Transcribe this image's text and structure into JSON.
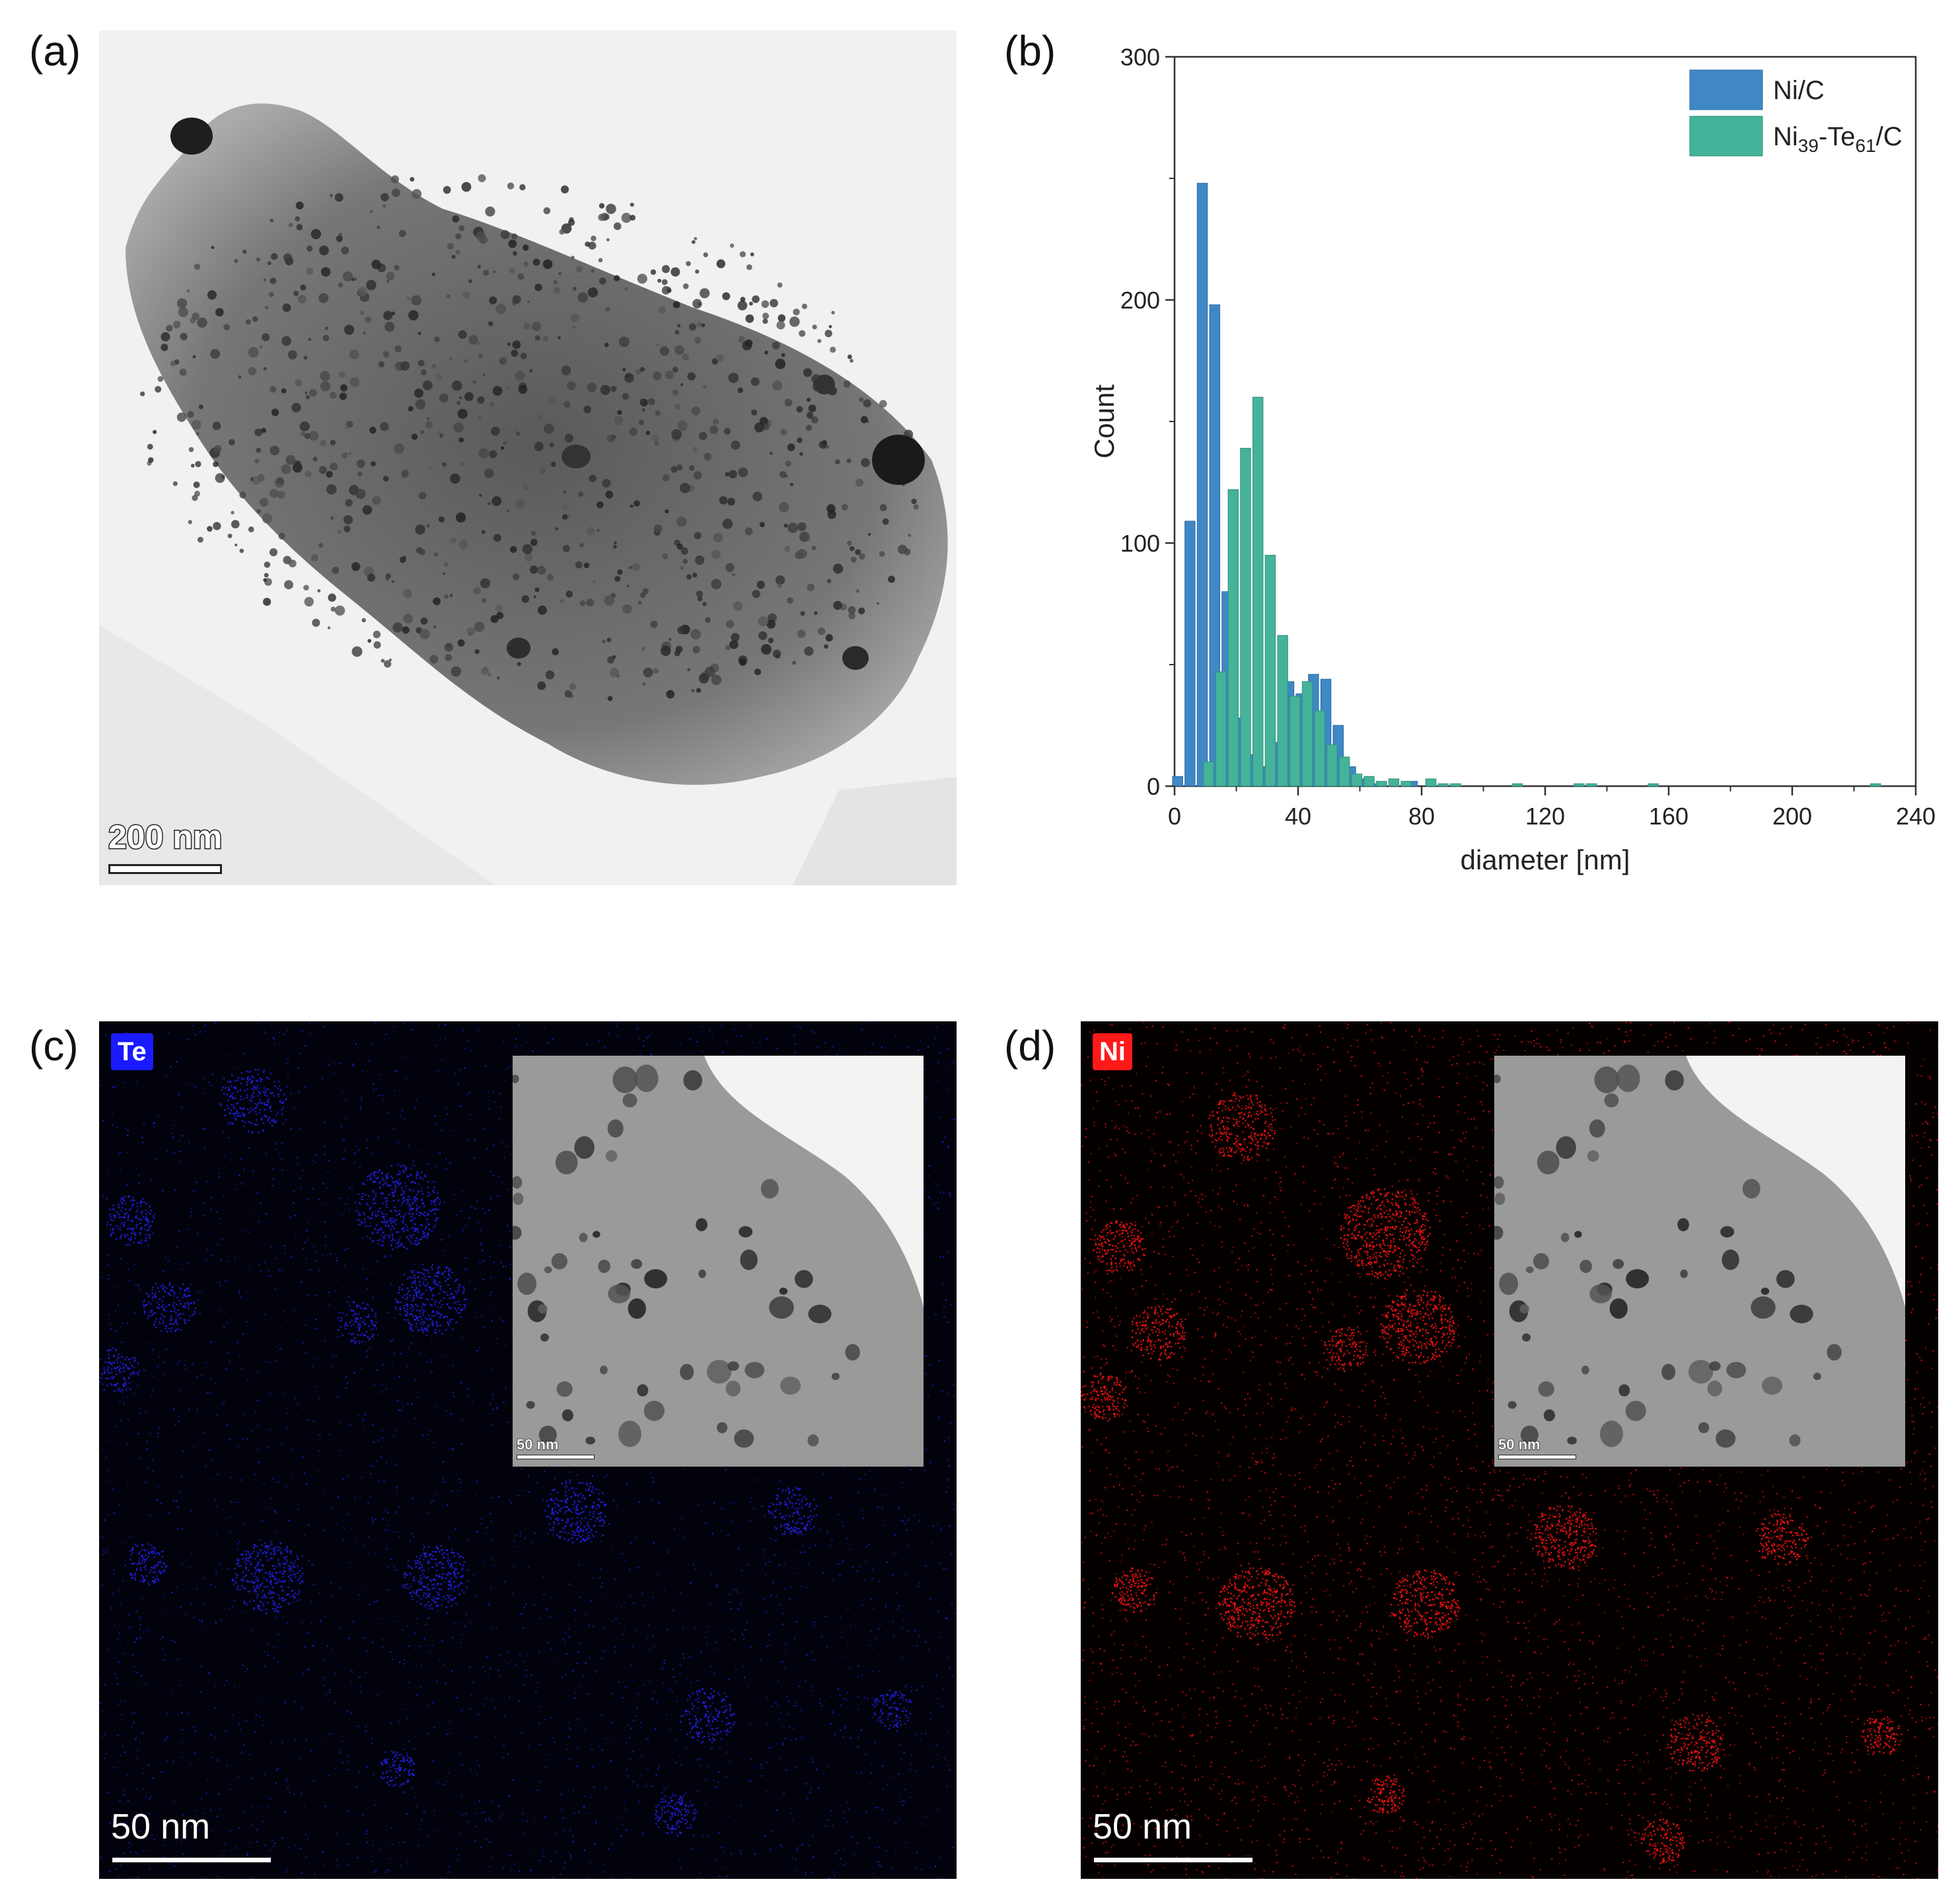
{
  "panels": {
    "a": {
      "letter": "(a)",
      "scale_label": "200 nm"
    },
    "b": {
      "letter": "(b)"
    },
    "c": {
      "letter": "(c)",
      "element": "Te",
      "element_color": "#1a1aff",
      "dot_color": "#2020e0",
      "scale_label": "50 nm",
      "inset_scale_label": "50 nm"
    },
    "d": {
      "letter": "(d)",
      "element": "Ni",
      "element_color": "#ff1a1a",
      "dot_color": "#ee1111",
      "scale_label": "50 nm",
      "inset_scale_label": "50 nm"
    }
  },
  "chart_data": {
    "type": "bar",
    "xlabel": "diameter [nm]",
    "ylabel": "Count",
    "xlim": [
      0,
      240
    ],
    "ylim": [
      0,
      300
    ],
    "xticks": [
      "0",
      "40",
      "80",
      "120",
      "160",
      "200",
      "240"
    ],
    "yticks": [
      "0",
      "100",
      "200",
      "300"
    ],
    "legend_position": "top-right",
    "bin_width": 4,
    "series": [
      {
        "name": "Ni/C",
        "legend_main": "Ni/C",
        "color": "#3f88c5",
        "x": [
          1,
          5,
          9,
          13,
          17,
          21,
          25,
          29,
          33,
          37,
          41,
          45,
          49,
          53,
          57,
          61,
          65,
          77
        ],
        "values": [
          4,
          109,
          248,
          198,
          80,
          28,
          13,
          8,
          18,
          43,
          38,
          46,
          44,
          25,
          8,
          3,
          1,
          2
        ]
      },
      {
        "name": "Ni39-Te61/C",
        "legend_main": "Ni",
        "legend_sub1": "39",
        "legend_mid": "-Te",
        "legend_sub2": "61",
        "legend_end": "/C",
        "color": "#45b39a",
        "x": [
          11,
          15,
          19,
          23,
          27,
          31,
          35,
          39,
          43,
          47,
          51,
          55,
          59,
          63,
          67,
          71,
          75,
          83,
          87,
          91,
          111,
          131,
          135,
          155,
          227
        ],
        "values": [
          10,
          47,
          122,
          139,
          160,
          95,
          62,
          37,
          43,
          31,
          17,
          12,
          5,
          4,
          2,
          3,
          2,
          3,
          1,
          1,
          1,
          1,
          1,
          1,
          1
        ]
      }
    ]
  }
}
